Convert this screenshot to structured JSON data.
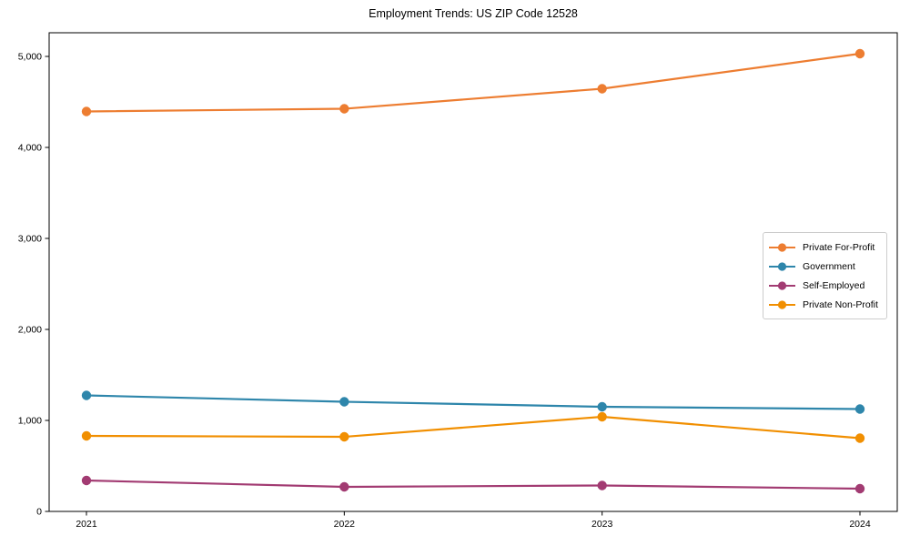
{
  "title": "Employment Trends: US ZIP Code 12528",
  "chart_data": {
    "type": "line",
    "title": "Employment Trends: US ZIP Code 12528",
    "x": [
      2021,
      2022,
      2023,
      2024
    ],
    "x_tick_labels": [
      "2021",
      "2022",
      "2023",
      "2024"
    ],
    "y_ticks": [
      0,
      1000,
      2000,
      3000,
      4000,
      5000
    ],
    "y_tick_labels": [
      "0",
      "1,000",
      "2,000",
      "3,000",
      "4,000",
      "5,000"
    ],
    "ylim": [
      0,
      5260
    ],
    "xlabel": "",
    "ylabel": "",
    "grid": false,
    "legend_position": "center right",
    "series": [
      {
        "name": "Private For-Profit",
        "color": "#ED7D31",
        "values": [
          4395,
          4425,
          4645,
          5030
        ]
      },
      {
        "name": "Government",
        "color": "#2E86AB",
        "values": [
          1275,
          1205,
          1150,
          1125
        ]
      },
      {
        "name": "Self-Employed",
        "color": "#A23B72",
        "values": [
          340,
          270,
          285,
          250
        ]
      },
      {
        "name": "Private Non-Profit",
        "color": "#F18F01",
        "values": [
          830,
          820,
          1040,
          805
        ]
      }
    ],
    "style": {
      "spine_color": "#000000",
      "background": "#ffffff",
      "line_width": 2.2,
      "marker_radius": 5.2
    }
  }
}
